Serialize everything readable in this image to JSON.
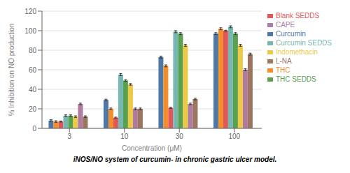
{
  "chart_data": {
    "type": "bar",
    "title": "iNOS/NO system of curcumin- in chronic gastric ulcer model.",
    "xlabel": "Concentration (μM)",
    "ylabel": "% Inhibition on NO production",
    "categories": [
      "3",
      "10",
      "30",
      "100"
    ],
    "series": [
      {
        "name": "Curcumin",
        "color": "#4e79a7",
        "values": [
          8,
          29,
          73,
          97
        ],
        "errors": [
          0.8,
          0.8,
          1.0,
          1.0
        ]
      },
      {
        "name": "THC",
        "color": "#f28e2b",
        "values": [
          7,
          20,
          64,
          102
        ],
        "errors": [
          0.8,
          0.8,
          1.0,
          1.0
        ]
      },
      {
        "name": "Blank SEDDS",
        "color": "#e15759",
        "values": [
          7,
          11,
          21,
          100
        ],
        "errors": [
          0.5,
          0.5,
          0.5,
          0.5
        ]
      },
      {
        "name": "Curcumin SEDDS",
        "color": "#76b7b2",
        "values": [
          13,
          55,
          99,
          104
        ],
        "errors": [
          0.8,
          1.0,
          1.0,
          1.0
        ]
      },
      {
        "name": "THC SEDDS",
        "color": "#59a14f",
        "values": [
          13,
          49,
          97,
          97
        ],
        "errors": [
          0.8,
          0.8,
          1.0,
          1.0
        ]
      },
      {
        "name": "Indomethacin",
        "color": "#edc948",
        "values": [
          12,
          45,
          85,
          85
        ],
        "errors": [
          0.8,
          0.8,
          1.0,
          1.0
        ]
      },
      {
        "name": "CAPE",
        "color": "#b07aa1",
        "values": [
          25,
          20,
          25,
          60
        ],
        "errors": [
          0.8,
          0.8,
          0.8,
          1.0
        ]
      },
      {
        "name": "L-NA",
        "color": "#9c755f",
        "values": [
          12,
          20,
          30,
          76
        ],
        "errors": [
          0.8,
          0.8,
          0.8,
          1.0
        ]
      }
    ],
    "ylim": [
      0,
      120
    ],
    "yticks": [
      0,
      20,
      40,
      60,
      80,
      100,
      120
    ],
    "grid": true,
    "legend": "right"
  }
}
